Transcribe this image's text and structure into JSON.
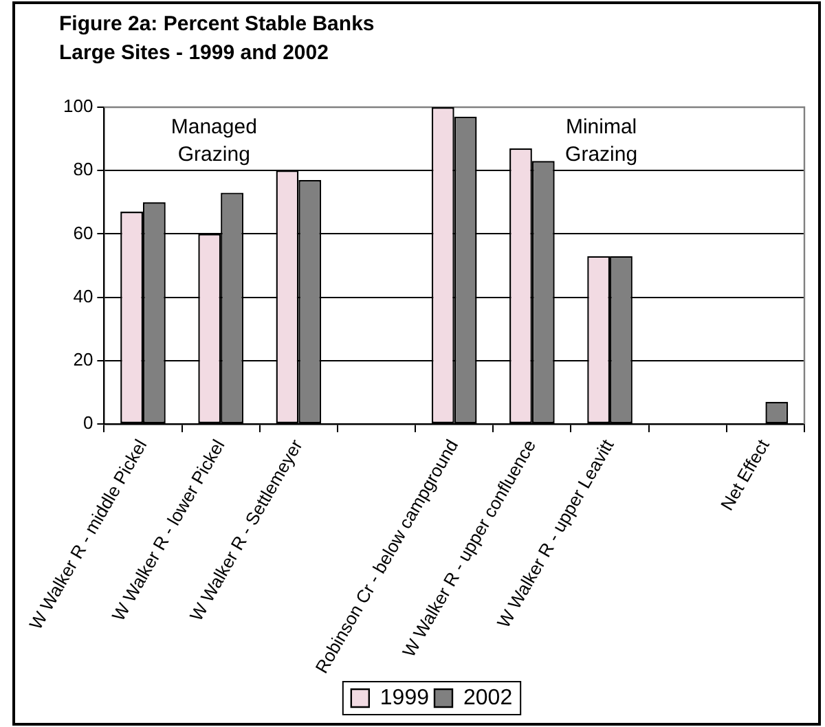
{
  "chart_data": {
    "type": "bar",
    "title": "Figure 2a: Percent Stable Banks",
    "subtitle": "Large Sites - 1999 and 2002",
    "categories": [
      "W Walker R - middle Pickel",
      "W Walker R - lower Pickel",
      "W Walker R - Settlemeyer",
      null,
      "Robinson Cr - below campground",
      "W Walker R - upper confluence",
      "W Walker R - upper Leavitt",
      null,
      "Net Effect"
    ],
    "series": [
      {
        "name": "1999",
        "color": "#f2dbe3",
        "values": [
          67,
          60,
          80,
          null,
          100,
          87,
          53,
          null,
          null
        ]
      },
      {
        "name": "2002",
        "color": "#808080",
        "values": [
          70,
          73,
          77,
          null,
          97,
          83,
          53,
          null,
          7
        ]
      }
    ],
    "ylim": [
      0,
      100
    ],
    "yticks": [
      0,
      20,
      40,
      60,
      80,
      100
    ],
    "grid": "y",
    "legend": "bottom",
    "annotations": [
      "Managed Grazing",
      "Minimal Grazing"
    ]
  }
}
